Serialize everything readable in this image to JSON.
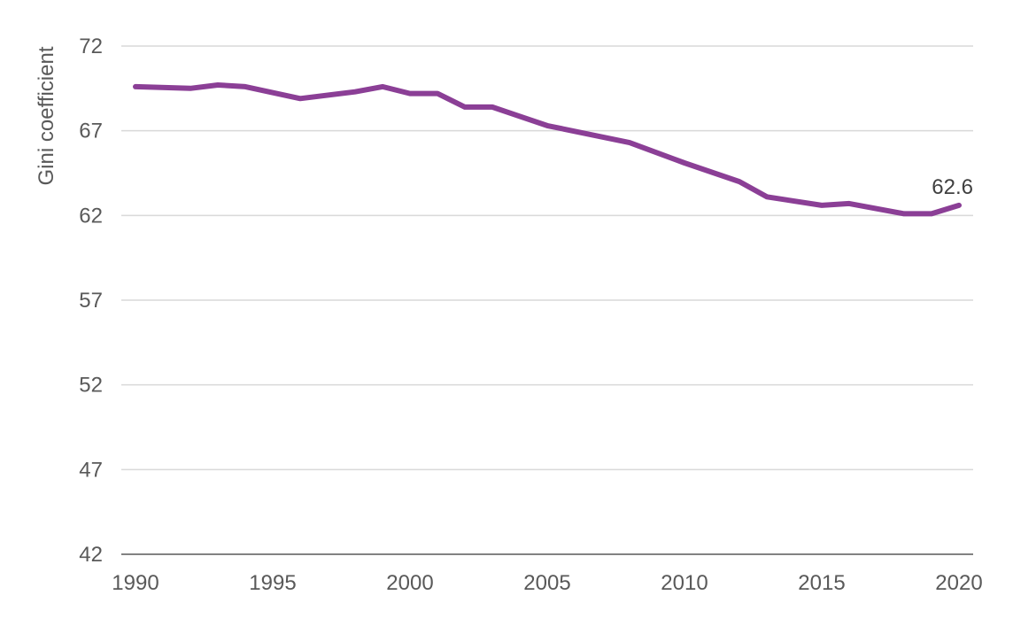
{
  "chart_data": {
    "type": "line",
    "title": "",
    "xlabel": "",
    "ylabel": "Gini coefficient",
    "xlim": [
      1990,
      2020
    ],
    "ylim": [
      42,
      72
    ],
    "x_ticks": [
      1990,
      1995,
      2000,
      2005,
      2010,
      2015,
      2020
    ],
    "y_ticks": [
      42,
      47,
      52,
      57,
      62,
      67,
      72
    ],
    "grid": true,
    "legend": "none",
    "series": [
      {
        "color": "#8b3f96",
        "x": [
          1990,
          1992,
          1993,
          1994,
          1996,
          1998,
          1999,
          2000,
          2001,
          2002,
          2003,
          2005,
          2008,
          2010,
          2012,
          2013,
          2015,
          2016,
          2018,
          2019,
          2020
        ],
        "y": [
          69.6,
          69.5,
          69.7,
          69.6,
          68.9,
          69.3,
          69.6,
          69.2,
          69.2,
          68.4,
          68.4,
          67.3,
          66.3,
          65.1,
          64.0,
          63.1,
          62.6,
          62.7,
          62.1,
          62.1,
          62.6
        ]
      }
    ],
    "annotations": [
      {
        "x": 2020,
        "y": 62.6,
        "text": "62.6"
      }
    ]
  }
}
